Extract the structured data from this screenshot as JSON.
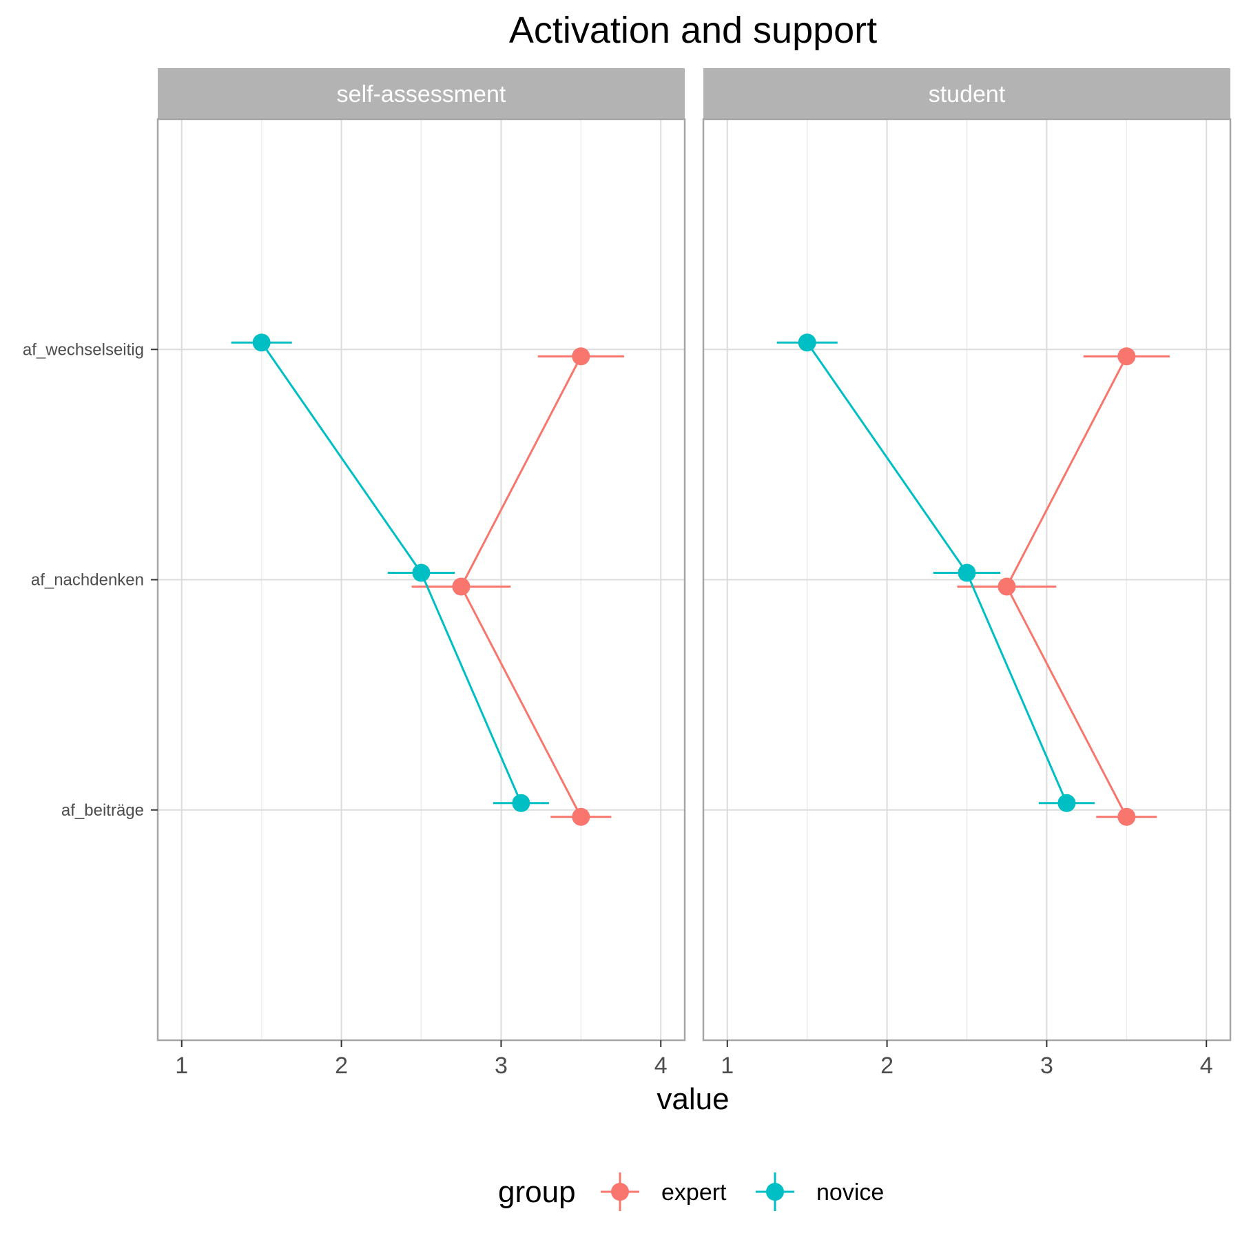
{
  "chart_data": {
    "type": "scatter",
    "title": "Activation and support",
    "xlabel": "value",
    "ylabel": "",
    "xlim": [
      0.85,
      4.15
    ],
    "x_ticks": [
      "1",
      "2",
      "3",
      "4"
    ],
    "categories": [
      "af_wechselseitig",
      "af_nachdenken",
      "af_beiträge"
    ],
    "legend": {
      "title": "group",
      "position": "bottom"
    },
    "grid": true,
    "panels": [
      {
        "label": "self-assessment",
        "series": [
          {
            "name": "expert",
            "color": "#F8766D",
            "values": [
              3.5,
              2.75,
              3.5
            ],
            "errors": [
              0.27,
              0.31,
              0.19
            ]
          },
          {
            "name": "novice",
            "color": "#00BFC4",
            "values": [
              1.5,
              2.5,
              3.125
            ],
            "errors": [
              0.19,
              0.21,
              0.175
            ]
          }
        ]
      },
      {
        "label": "student",
        "series": [
          {
            "name": "expert",
            "color": "#F8766D",
            "values": [
              3.5,
              2.75,
              3.5
            ],
            "errors": [
              0.27,
              0.31,
              0.19
            ]
          },
          {
            "name": "novice",
            "color": "#00BFC4",
            "values": [
              1.5,
              2.5,
              3.125
            ],
            "errors": [
              0.19,
              0.21,
              0.175
            ]
          }
        ]
      }
    ]
  }
}
